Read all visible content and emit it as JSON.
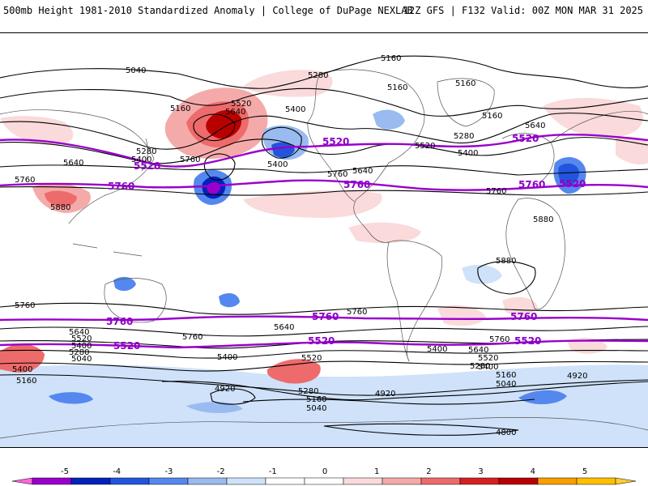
{
  "header": {
    "title": "500mb Height 1981-2010 Standardized Anomaly | College of DuPage NEXLAB",
    "run_info": "12Z GFS | F132 Valid: 00Z MON MAR 31 2025"
  },
  "contour_labels": {
    "l5040": "5040",
    "l5160": "5160",
    "l5280": "5280",
    "l5400": "5400",
    "l5520": "5520",
    "l5640": "5640",
    "l5760": "5760",
    "l5880": "5880",
    "l4920": "4920",
    "l4800": "4800"
  },
  "highlight_labels": {
    "h5520": "5520",
    "h5760": "5760"
  },
  "colorbar": {
    "ticks": [
      "-5",
      "-4",
      "-3",
      "-2",
      "-1",
      "0",
      "1",
      "2",
      "3",
      "4",
      "5"
    ],
    "colors": [
      "#9900cc",
      "#0022bb",
      "#2255dd",
      "#5588ee",
      "#99bbf0",
      "#cfe2fa",
      "#ffffff",
      "#ffffff",
      "#fadada",
      "#f5aaaa",
      "#ee6b6b",
      "#d62020",
      "#b80000",
      "#f7a000",
      "#ffc000"
    ]
  },
  "colors": {
    "positive_anomaly": "#d62020",
    "negative_anomaly": "#2255dd",
    "highlight_contour": "#9900cc"
  }
}
